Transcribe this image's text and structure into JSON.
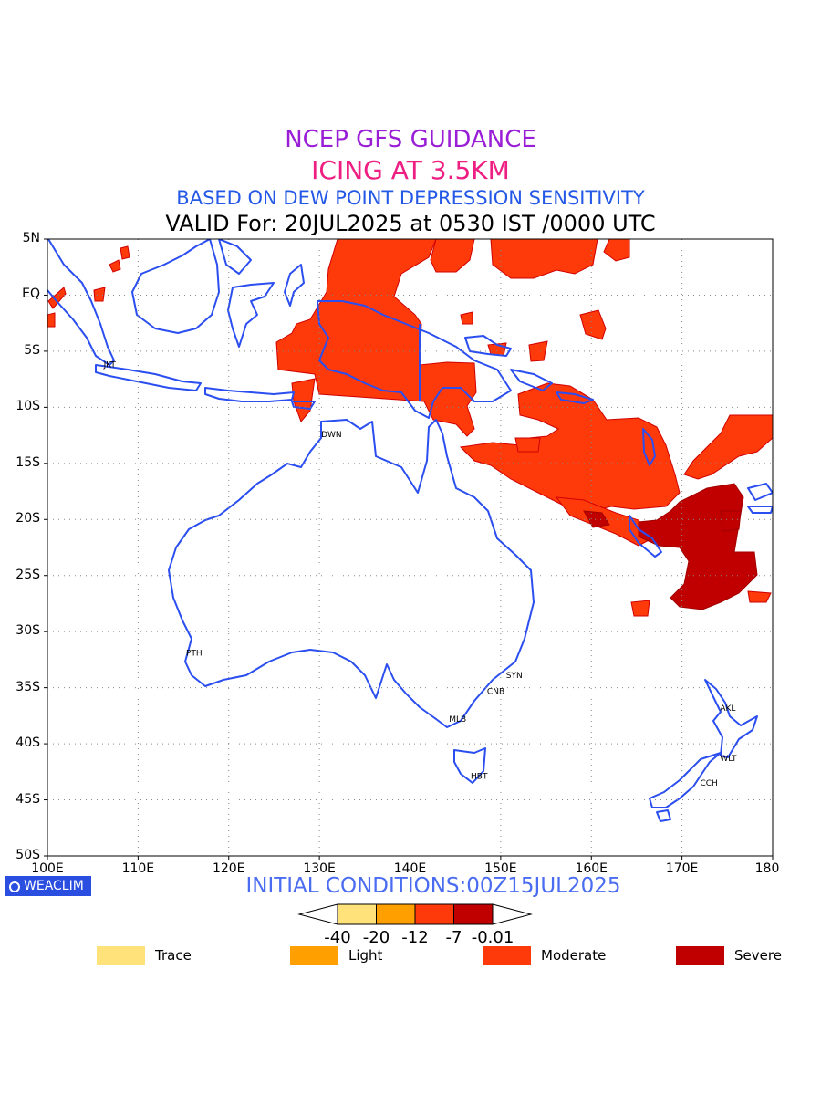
{
  "header": {
    "line1": "NCEP GFS GUIDANCE",
    "line2": "ICING AT 3.5KM",
    "line3": "BASED ON DEW POINT DEPRESSION SENSITIVITY",
    "line4": "VALID For: 20JUL2025 at 0530 IST /0000 UTC"
  },
  "map": {
    "lat_labels": [
      "5N",
      "EQ",
      "5S",
      "10S",
      "15S",
      "20S",
      "25S",
      "30S",
      "35S",
      "40S",
      "45S",
      "50S"
    ],
    "lon_labels": [
      "100E",
      "110E",
      "120E",
      "130E",
      "140E",
      "150E",
      "160E",
      "170E",
      "180"
    ],
    "lat_range": [
      5,
      -50
    ],
    "lon_range": [
      100,
      180
    ],
    "cities": [
      {
        "name": "JKT",
        "lon": 106.8,
        "lat": -6.2
      },
      {
        "name": "DWN",
        "lon": 130.8,
        "lat": -12.4
      },
      {
        "name": "PTH",
        "lon": 115.9,
        "lat": -31.9
      },
      {
        "name": "SYN",
        "lon": 151.2,
        "lat": -33.9
      },
      {
        "name": "CNB",
        "lon": 149.1,
        "lat": -35.3
      },
      {
        "name": "MLB",
        "lon": 144.9,
        "lat": -37.8
      },
      {
        "name": "HBT",
        "lon": 147.3,
        "lat": -42.9
      },
      {
        "name": "AKL",
        "lon": 174.8,
        "lat": -36.8
      },
      {
        "name": "WLT",
        "lon": 174.8,
        "lat": -41.3
      },
      {
        "name": "CCH",
        "lon": 172.6,
        "lat": -43.5
      }
    ],
    "coastline_color": "#2a4ef0",
    "grid": "dotted"
  },
  "footer": {
    "logo": "WEACLIM",
    "initial": "INITIAL CONDITIONS:00Z15JUL2025"
  },
  "colorbar": {
    "labels": [
      "-40",
      "-20",
      "-12",
      "-7",
      "-0.01"
    ],
    "colors": [
      "#ffe27a",
      "#ffa000",
      "#ff3a0a",
      "#c00000"
    ]
  },
  "legend": [
    {
      "label": "Trace",
      "color": "#ffe27a"
    },
    {
      "label": "Light",
      "color": "#ffa000"
    },
    {
      "label": "Moderate",
      "color": "#ff3a0a"
    },
    {
      "label": "Severe",
      "color": "#c00000"
    }
  ]
}
